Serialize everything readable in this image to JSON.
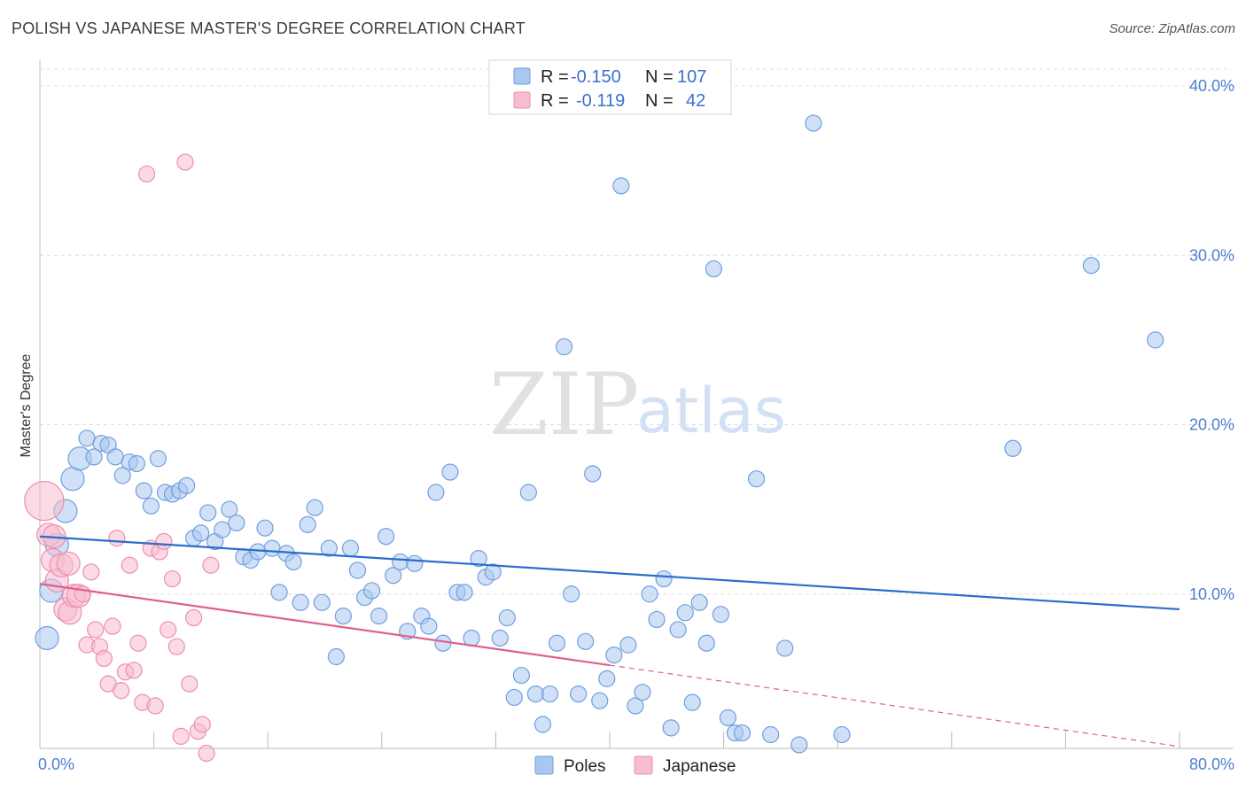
{
  "header": {
    "title": "POLISH VS JAPANESE MASTER'S DEGREE CORRELATION CHART",
    "source": "Source: ZipAtlas.com"
  },
  "watermark": {
    "zip": "ZIP",
    "atlas": "atlas"
  },
  "colors": {
    "poles_fill": "#a9c8f0",
    "poles_stroke": "#6f9fde",
    "poles_line": "#2a6dcc",
    "japanese_fill": "#f7bcd0",
    "japanese_stroke": "#ec8fae",
    "japanese_line": "#e0608c",
    "grid": "#dddddd",
    "tick_label": "#4a7fd0"
  },
  "legend": {
    "rows": [
      {
        "r_label": "R = ",
        "r_value": "-0.150",
        "n_label": "N = ",
        "n_value": "107",
        "series": "poles"
      },
      {
        "r_label": "R = ",
        "r_value": "-0.119",
        "n_label": "N = ",
        "n_value": "42",
        "series": "japanese"
      }
    ]
  },
  "chart_data": {
    "type": "scatter",
    "ylabel": "Master's Degree",
    "xlim": [
      0,
      80
    ],
    "ylim": [
      0,
      40
    ],
    "x_tick_labels": [
      {
        "value": 0,
        "label": "0.0%"
      },
      {
        "value": 80,
        "label": "80.0%"
      }
    ],
    "y_tick_labels": [
      {
        "value": 10,
        "label": "10.0%"
      },
      {
        "value": 20,
        "label": "20.0%"
      },
      {
        "value": 30,
        "label": "30.0%"
      },
      {
        "value": 40,
        "label": "40.0%"
      }
    ],
    "series": [
      {
        "name": "Poles",
        "key": "poles",
        "trend": {
          "x0": 0,
          "y0": 13.4,
          "x1": 80,
          "y1": 9.1,
          "solid_to": 80
        },
        "points": [
          [
            0.5,
            7.4
          ],
          [
            0.8,
            10.2
          ],
          [
            1.2,
            12.9
          ],
          [
            1.8,
            14.9
          ],
          [
            2.3,
            16.8
          ],
          [
            2.8,
            18.0
          ],
          [
            3.3,
            19.2
          ],
          [
            3.8,
            18.1
          ],
          [
            4.3,
            18.9
          ],
          [
            4.8,
            18.8
          ],
          [
            5.3,
            18.1
          ],
          [
            5.8,
            17.0
          ],
          [
            6.3,
            17.8
          ],
          [
            6.8,
            17.7
          ],
          [
            7.3,
            16.1
          ],
          [
            7.8,
            15.2
          ],
          [
            8.3,
            18.0
          ],
          [
            8.8,
            16.0
          ],
          [
            9.3,
            15.9
          ],
          [
            9.8,
            16.1
          ],
          [
            10.3,
            16.4
          ],
          [
            10.8,
            13.3
          ],
          [
            11.3,
            13.6
          ],
          [
            11.8,
            14.8
          ],
          [
            12.3,
            13.1
          ],
          [
            12.8,
            13.8
          ],
          [
            13.3,
            15.0
          ],
          [
            13.8,
            14.2
          ],
          [
            14.3,
            12.2
          ],
          [
            14.8,
            12.0
          ],
          [
            15.3,
            12.5
          ],
          [
            15.8,
            13.9
          ],
          [
            16.3,
            12.7
          ],
          [
            16.8,
            10.1
          ],
          [
            17.3,
            12.4
          ],
          [
            17.8,
            11.9
          ],
          [
            18.3,
            9.5
          ],
          [
            18.8,
            14.1
          ],
          [
            19.3,
            15.1
          ],
          [
            19.8,
            9.5
          ],
          [
            20.3,
            12.7
          ],
          [
            20.8,
            6.3
          ],
          [
            21.3,
            8.7
          ],
          [
            21.8,
            12.7
          ],
          [
            22.3,
            11.4
          ],
          [
            22.8,
            9.8
          ],
          [
            23.3,
            10.2
          ],
          [
            23.8,
            8.7
          ],
          [
            24.3,
            13.4
          ],
          [
            24.8,
            11.1
          ],
          [
            25.3,
            11.9
          ],
          [
            25.8,
            7.8
          ],
          [
            26.3,
            11.8
          ],
          [
            26.8,
            8.7
          ],
          [
            27.3,
            8.1
          ],
          [
            27.8,
            16.0
          ],
          [
            28.3,
            7.1
          ],
          [
            28.8,
            17.2
          ],
          [
            29.3,
            10.1
          ],
          [
            29.8,
            10.1
          ],
          [
            30.3,
            7.4
          ],
          [
            30.8,
            12.1
          ],
          [
            31.3,
            11.0
          ],
          [
            31.8,
            11.3
          ],
          [
            32.3,
            7.4
          ],
          [
            32.8,
            8.6
          ],
          [
            33.3,
            3.9
          ],
          [
            33.8,
            5.2
          ],
          [
            34.3,
            16.0
          ],
          [
            34.8,
            4.1
          ],
          [
            35.3,
            2.3
          ],
          [
            35.8,
            4.1
          ],
          [
            36.3,
            7.1
          ],
          [
            36.8,
            24.6
          ],
          [
            37.3,
            10.0
          ],
          [
            37.8,
            4.1
          ],
          [
            38.3,
            7.2
          ],
          [
            38.8,
            17.1
          ],
          [
            39.3,
            3.7
          ],
          [
            39.8,
            5.0
          ],
          [
            40.3,
            6.4
          ],
          [
            40.8,
            34.1
          ],
          [
            41.3,
            7.0
          ],
          [
            41.8,
            3.4
          ],
          [
            42.3,
            4.2
          ],
          [
            42.8,
            10.0
          ],
          [
            43.3,
            8.5
          ],
          [
            43.8,
            10.9
          ],
          [
            44.3,
            2.1
          ],
          [
            44.8,
            7.9
          ],
          [
            45.3,
            8.9
          ],
          [
            45.8,
            3.6
          ],
          [
            46.3,
            9.5
          ],
          [
            46.8,
            7.1
          ],
          [
            47.3,
            29.2
          ],
          [
            47.8,
            8.8
          ],
          [
            48.3,
            2.7
          ],
          [
            48.8,
            1.8
          ],
          [
            49.3,
            1.8
          ],
          [
            50.3,
            16.8
          ],
          [
            51.3,
            1.7
          ],
          [
            52.3,
            6.8
          ],
          [
            53.3,
            1.1
          ],
          [
            54.3,
            37.8
          ],
          [
            56.3,
            1.7
          ],
          [
            68.3,
            18.6
          ],
          [
            78.3,
            25.0
          ],
          [
            73.8,
            29.4
          ]
        ]
      },
      {
        "name": "Japanese",
        "key": "japanese",
        "trend": {
          "x0": 0,
          "y0": 10.6,
          "x1": 80,
          "y1": 1.0,
          "solid_to": 40
        },
        "points": [
          [
            0.3,
            15.5
          ],
          [
            0.6,
            13.5
          ],
          [
            0.9,
            12.0
          ],
          [
            1.2,
            10.8
          ],
          [
            1.5,
            11.7
          ],
          [
            1.8,
            9.1
          ],
          [
            2.1,
            8.9
          ],
          [
            2.4,
            9.9
          ],
          [
            2.7,
            9.9
          ],
          [
            3.0,
            10.0
          ],
          [
            3.3,
            7.0
          ],
          [
            3.6,
            11.3
          ],
          [
            3.9,
            7.9
          ],
          [
            4.2,
            6.9
          ],
          [
            4.5,
            6.2
          ],
          [
            4.8,
            4.7
          ],
          [
            5.1,
            8.1
          ],
          [
            5.4,
            13.3
          ],
          [
            5.7,
            4.3
          ],
          [
            6.0,
            5.4
          ],
          [
            6.3,
            11.7
          ],
          [
            6.6,
            5.5
          ],
          [
            6.9,
            7.1
          ],
          [
            7.2,
            3.6
          ],
          [
            7.5,
            34.8
          ],
          [
            7.8,
            12.7
          ],
          [
            8.1,
            3.4
          ],
          [
            8.4,
            12.5
          ],
          [
            8.7,
            13.1
          ],
          [
            9.0,
            7.9
          ],
          [
            9.3,
            10.9
          ],
          [
            9.6,
            6.9
          ],
          [
            9.9,
            1.6
          ],
          [
            10.2,
            35.5
          ],
          [
            10.5,
            4.7
          ],
          [
            10.8,
            8.6
          ],
          [
            11.1,
            1.9
          ],
          [
            11.4,
            2.3
          ],
          [
            11.7,
            0.6
          ],
          [
            12.0,
            11.7
          ],
          [
            1.0,
            13.4
          ],
          [
            2.0,
            11.8
          ]
        ]
      }
    ]
  },
  "bottom_legend": {
    "items": [
      {
        "label": "Poles",
        "series": "poles"
      },
      {
        "label": "Japanese",
        "series": "japanese"
      }
    ]
  }
}
